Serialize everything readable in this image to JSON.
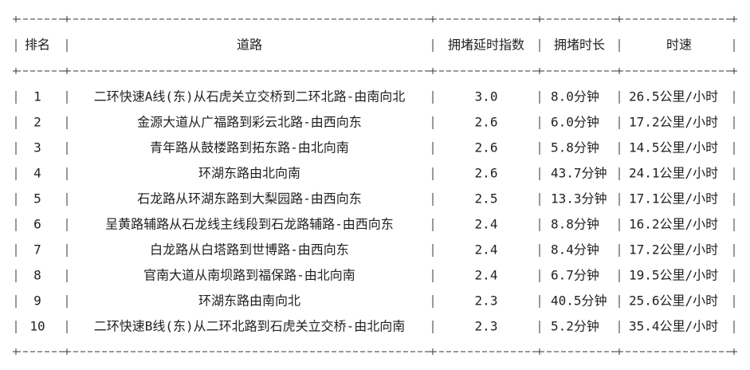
{
  "table": {
    "header": [
      "排名",
      "道路",
      "拥堵延时指数",
      "拥堵时长",
      "时速"
    ],
    "rows": [
      [
        "1",
        "二环快速A线(东)从石虎关立交桥到二环北路-由南向北",
        "3.0",
        "8.0分钟",
        "26.5公里/小时"
      ],
      [
        "2",
        "金源大道从广福路到彩云北路-由西向东",
        "2.6",
        "6.0分钟",
        "17.2公里/小时"
      ],
      [
        "3",
        "青年路从鼓楼路到拓东路-由北向南",
        "2.6",
        "5.8分钟",
        "14.5公里/小时"
      ],
      [
        "4",
        "环湖东路由北向南",
        "2.6",
        "43.7分钟",
        "24.1公里/小时"
      ],
      [
        "5",
        "石龙路从环湖东路到大梨园路-由西向东",
        "2.5",
        "13.3分钟",
        "17.1公里/小时"
      ],
      [
        "6",
        "呈黄路辅路从石龙线主线段到石龙路辅路-由西向东",
        "2.4",
        "8.8分钟",
        "16.2公里/小时"
      ],
      [
        "7",
        "白龙路从白塔路到世博路-由西向东",
        "2.4",
        "8.4分钟",
        "17.2公里/小时"
      ],
      [
        "8",
        "官南大道从南坝路到福保路-由北向南",
        "2.4",
        "6.7分钟",
        "19.5公里/小时"
      ],
      [
        "9",
        "环湖东路由南向北",
        "2.3",
        "40.5分钟",
        "25.6公里/小时"
      ],
      [
        "10",
        "二环快速B线(东)从二环北路到石虎关立交桥-由北向南",
        "2.3",
        "5.2分钟",
        "35.4公里/小时"
      ]
    ]
  }
}
